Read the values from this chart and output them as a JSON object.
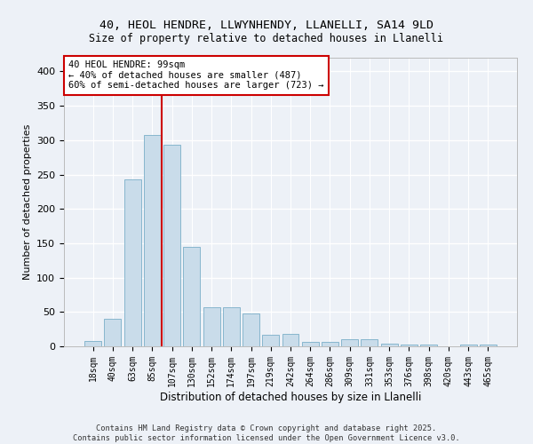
{
  "title_line1": "40, HEOL HENDRE, LLWYNHENDY, LLANELLI, SA14 9LD",
  "title_line2": "Size of property relative to detached houses in Llanelli",
  "xlabel": "Distribution of detached houses by size in Llanelli",
  "ylabel": "Number of detached properties",
  "bar_labels": [
    "18sqm",
    "40sqm",
    "63sqm",
    "85sqm",
    "107sqm",
    "130sqm",
    "152sqm",
    "174sqm",
    "197sqm",
    "219sqm",
    "242sqm",
    "264sqm",
    "286sqm",
    "309sqm",
    "331sqm",
    "353sqm",
    "376sqm",
    "398sqm",
    "420sqm",
    "443sqm",
    "465sqm"
  ],
  "bar_values": [
    8,
    40,
    243,
    307,
    293,
    145,
    57,
    57,
    48,
    17,
    18,
    7,
    7,
    10,
    10,
    4,
    3,
    3,
    0,
    2,
    3
  ],
  "bar_color": "#c9dcea",
  "bar_edge_color": "#7aaec8",
  "vline_index": 3.5,
  "vline_color": "#cc0000",
  "annotation_text": "40 HEOL HENDRE: 99sqm\n← 40% of detached houses are smaller (487)\n60% of semi-detached houses are larger (723) →",
  "annotation_box_color": "#cc0000",
  "background_color": "#edf1f7",
  "grid_color": "#ffffff",
  "ylim": [
    0,
    420
  ],
  "yticks": [
    0,
    50,
    100,
    150,
    200,
    250,
    300,
    350,
    400
  ],
  "footer_line1": "Contains HM Land Registry data © Crown copyright and database right 2025.",
  "footer_line2": "Contains public sector information licensed under the Open Government Licence v3.0."
}
